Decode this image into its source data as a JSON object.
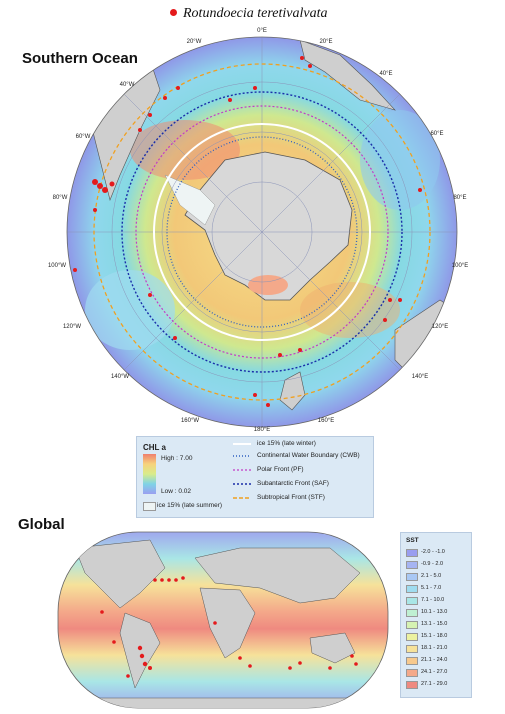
{
  "species": {
    "name": "Rotundoecia teretivalvata",
    "marker_color": "#e41a1c"
  },
  "southern_ocean": {
    "title": "Southern Ocean",
    "lon_labels": [
      "0°E",
      "20°W",
      "20°E",
      "40°W",
      "40°E",
      "60°W",
      "60°E",
      "80°W",
      "80°E",
      "100°W",
      "100°E",
      "120°W",
      "120°E",
      "140°W",
      "140°E",
      "160°W",
      "160°E",
      "180°E"
    ],
    "legend": {
      "chl_title": "CHL a",
      "chl_high": "High : 7.00",
      "chl_low": "Low : 0.02",
      "ice_summer": "ice 15% (late summer)",
      "ice_winter": "ice 15% (late winter)",
      "cwb": "Continental Water Boundary (CWB)",
      "pf": "Polar Front (PF)",
      "saf": "Subantarctic  Front (SAF)",
      "stf": "Subtropical Front (STF)"
    },
    "colors": {
      "pf": "#c23bc8",
      "saf": "#1a2ea8",
      "stf": "#f0a020",
      "cwb": "#3060c0",
      "ice_winter": "#ffffff"
    }
  },
  "global": {
    "title": "Global",
    "sst_legend": {
      "title": "SST",
      "classes": [
        {
          "label": "-2.0 - -1.0",
          "color": "#9a9ef0"
        },
        {
          "label": "-0.9 - 2.0",
          "color": "#a6b4f2"
        },
        {
          "label": "2.1 - 5.0",
          "color": "#a9c8f4"
        },
        {
          "label": "5.1 - 7.0",
          "color": "#9fdcef"
        },
        {
          "label": "7.1 - 10.0",
          "color": "#a9e6e6"
        },
        {
          "label": "10.1 - 13.0",
          "color": "#bff0d2"
        },
        {
          "label": "13.1 - 15.0",
          "color": "#d6f2b2"
        },
        {
          "label": "15.1 - 18.0",
          "color": "#ecf2a0"
        },
        {
          "label": "18.1 - 21.0",
          "color": "#f6e29a"
        },
        {
          "label": "21.1 - 24.0",
          "color": "#f7c98d"
        },
        {
          "label": "24.1 - 27.0",
          "color": "#f4a98a"
        },
        {
          "label": "27.1 - 29.0",
          "color": "#ef8a80"
        }
      ]
    }
  }
}
